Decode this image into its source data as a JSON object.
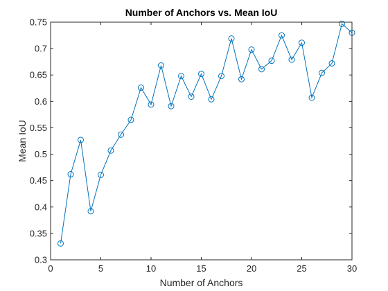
{
  "colors": {
    "series": "#0072BD",
    "axis": "#262626",
    "background": "#ffffff"
  },
  "chart_data": {
    "type": "line",
    "title": "Number of Anchors vs. Mean IoU",
    "xlabel": "Number of Anchors",
    "ylabel": "Mean IoU",
    "xlim": [
      0,
      30
    ],
    "ylim": [
      0.3,
      0.75
    ],
    "xticks": [
      0,
      5,
      10,
      15,
      20,
      25,
      30
    ],
    "yticks": [
      0.3,
      0.35,
      0.4,
      0.45,
      0.5,
      0.55,
      0.6,
      0.65,
      0.7,
      0.75
    ],
    "xtick_labels": [
      "0",
      "5",
      "10",
      "15",
      "20",
      "25",
      "30"
    ],
    "ytick_labels": [
      "0.3",
      "0.35",
      "0.4",
      "0.45",
      "0.5",
      "0.55",
      "0.6",
      "0.65",
      "0.7",
      "0.75"
    ],
    "marker": "circle",
    "grid": false,
    "box": true,
    "series": [
      {
        "x": [
          1,
          2,
          3,
          4,
          5,
          6,
          7,
          8,
          9,
          10,
          11,
          12,
          13,
          14,
          15,
          16,
          17,
          18,
          19,
          20,
          21,
          22,
          23,
          24,
          25,
          26,
          27,
          28,
          29,
          30
        ],
        "y": [
          0.331,
          0.462,
          0.527,
          0.392,
          0.461,
          0.507,
          0.537,
          0.565,
          0.626,
          0.594,
          0.668,
          0.591,
          0.648,
          0.609,
          0.652,
          0.604,
          0.648,
          0.719,
          0.642,
          0.698,
          0.661,
          0.677,
          0.725,
          0.679,
          0.711,
          0.607,
          0.654,
          0.672,
          0.747,
          0.73
        ]
      }
    ]
  }
}
